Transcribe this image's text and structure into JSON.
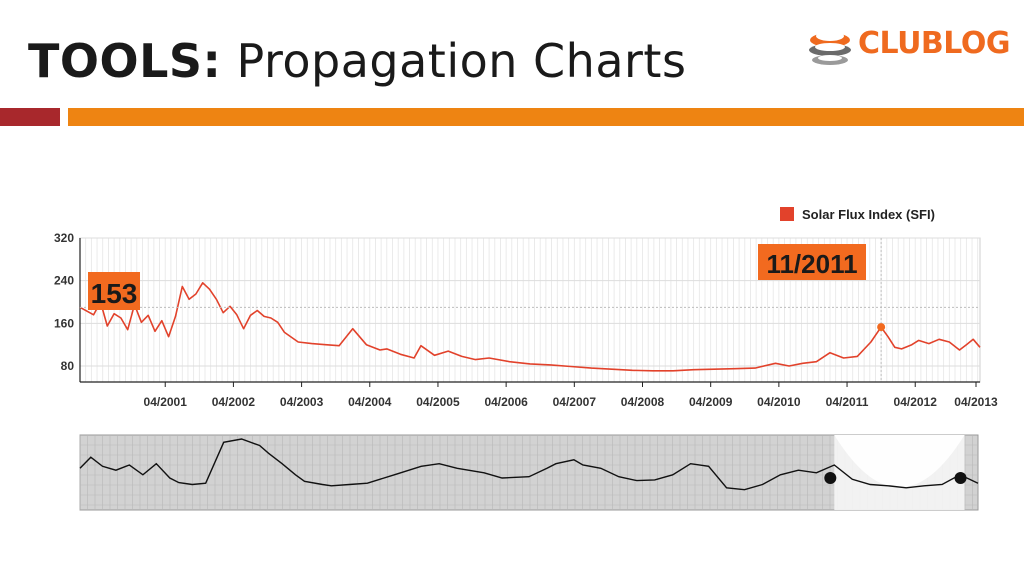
{
  "slide": {
    "title_bold": "TOOLS:",
    "title_rest": " Propagation Charts",
    "logo_club": "CLUB",
    "logo_log": "LOG"
  },
  "colors": {
    "accent_red": "#a8282c",
    "accent_orange": "#ee8412",
    "series_red": "#e2422b",
    "callout_orange": "#f26a1f"
  },
  "chart_data": [
    {
      "type": "line",
      "title": "",
      "ylim": [
        50,
        320
      ],
      "yticks": [
        80,
        160,
        240,
        320
      ],
      "xlim": [
        2000.0,
        2013.2
      ],
      "xtick_labels": [
        "04/2001",
        "04/2002",
        "04/2003",
        "04/2004",
        "04/2005",
        "04/2006",
        "04/2007",
        "04/2008",
        "04/2009",
        "04/2010",
        "04/2011",
        "04/2012",
        "04/2013"
      ],
      "xtick_values": [
        2001.25,
        2002.25,
        2003.25,
        2004.25,
        2005.25,
        2006.25,
        2007.25,
        2008.25,
        2009.25,
        2010.25,
        2011.25,
        2012.25,
        2013.25
      ],
      "legend": {
        "label": "Solar Flux Index (SFI)",
        "position": "top-right"
      },
      "grid": true,
      "series": [
        {
          "name": "Solar Flux Index (SFI)",
          "x": [
            2000.0,
            2000.1,
            2000.2,
            2000.3,
            2000.4,
            2000.5,
            2000.6,
            2000.7,
            2000.8,
            2000.9,
            2001.0,
            2001.1,
            2001.2,
            2001.3,
            2001.4,
            2001.5,
            2001.6,
            2001.7,
            2001.8,
            2001.9,
            2002.0,
            2002.1,
            2002.2,
            2002.3,
            2002.4,
            2002.5,
            2002.6,
            2002.7,
            2002.8,
            2002.9,
            2003.0,
            2003.2,
            2003.4,
            2003.6,
            2003.8,
            2004.0,
            2004.2,
            2004.4,
            2004.5,
            2004.7,
            2004.9,
            2005.0,
            2005.2,
            2005.4,
            2005.6,
            2005.8,
            2006.0,
            2006.3,
            2006.6,
            2006.9,
            2007.2,
            2007.5,
            2007.8,
            2008.1,
            2008.4,
            2008.7,
            2009.0,
            2009.3,
            2009.6,
            2009.9,
            2010.2,
            2010.4,
            2010.6,
            2010.8,
            2011.0,
            2011.2,
            2011.4,
            2011.6,
            2011.75,
            2011.85,
            2011.95,
            2012.05,
            2012.2,
            2012.3,
            2012.45,
            2012.6,
            2012.75,
            2012.9,
            2013.0,
            2013.1,
            2013.2
          ],
          "y": [
            190,
            183,
            176,
            200,
            155,
            178,
            170,
            148,
            195,
            162,
            175,
            145,
            165,
            135,
            173,
            229,
            205,
            215,
            236,
            224,
            205,
            180,
            192,
            176,
            150,
            175,
            184,
            173,
            170,
            162,
            143,
            125,
            122,
            120,
            118,
            150,
            120,
            110,
            112,
            102,
            95,
            118,
            100,
            108,
            98,
            92,
            95,
            88,
            84,
            82,
            79,
            76,
            74,
            72,
            71,
            71,
            73,
            74,
            75,
            76,
            85,
            80,
            85,
            88,
            105,
            95,
            98,
            125,
            153,
            135,
            115,
            112,
            120,
            128,
            122,
            130,
            125,
            110,
            120,
            130,
            115
          ]
        }
      ],
      "annotations": [
        {
          "label": "153",
          "series_x": 2000.0,
          "series_y": 190
        },
        {
          "label": "11/2011",
          "x": 2011.75,
          "y": 153
        }
      ]
    },
    {
      "type": "line",
      "title": "",
      "series": [
        {
          "x": [
            0,
            0.012,
            0.025,
            0.04,
            0.055,
            0.07,
            0.085,
            0.1,
            0.11,
            0.125,
            0.14,
            0.16,
            0.18,
            0.2,
            0.21,
            0.225,
            0.24,
            0.25,
            0.27,
            0.28,
            0.3,
            0.32,
            0.35,
            0.38,
            0.4,
            0.42,
            0.45,
            0.47,
            0.5,
            0.52,
            0.53,
            0.55,
            0.56,
            0.58,
            0.6,
            0.62,
            0.64,
            0.66,
            0.68,
            0.7,
            0.72,
            0.74,
            0.76,
            0.78,
            0.8,
            0.82,
            0.84,
            0.86,
            0.88,
            0.9,
            0.92,
            0.94,
            0.96,
            0.98,
            1.0
          ],
          "y": [
            0.55,
            0.72,
            0.58,
            0.52,
            0.6,
            0.45,
            0.62,
            0.4,
            0.33,
            0.3,
            0.32,
            0.95,
            1.0,
            0.9,
            0.78,
            0.62,
            0.45,
            0.35,
            0.3,
            0.28,
            0.3,
            0.32,
            0.45,
            0.58,
            0.62,
            0.55,
            0.48,
            0.4,
            0.42,
            0.55,
            0.62,
            0.68,
            0.6,
            0.55,
            0.42,
            0.36,
            0.37,
            0.45,
            0.62,
            0.58,
            0.25,
            0.22,
            0.3,
            0.45,
            0.52,
            0.48,
            0.6,
            0.38,
            0.3,
            0.28,
            0.25,
            0.28,
            0.3,
            0.45,
            0.32
          ]
        }
      ],
      "markers": [
        0.84,
        0.985
      ]
    }
  ]
}
